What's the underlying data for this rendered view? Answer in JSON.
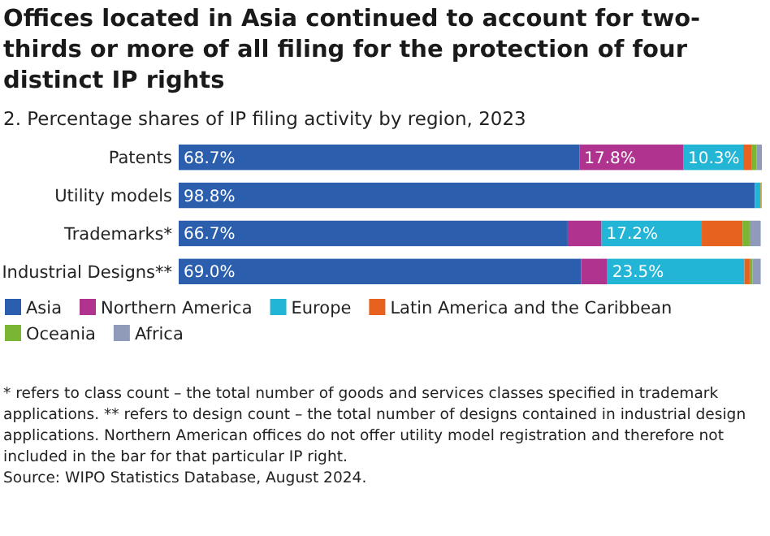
{
  "chart_data": {
    "type": "bar",
    "orientation": "horizontal",
    "stacked": true,
    "title": "Offices located in Asia continued to account for two-thirds or more of all filing for the protection of four distinct IP rights",
    "subtitle": "2. Percentage shares of IP filing activity by region, 2023",
    "categories": [
      "Patents",
      "Utility models",
      "Trademarks*",
      "Industrial Designs**"
    ],
    "series": [
      {
        "name": "Asia",
        "color": "#2b5fad",
        "values": [
          68.7,
          98.8,
          66.7,
          69.0
        ],
        "value_labels": [
          "68.7%",
          "98.8%",
          "66.7%",
          "69.0%"
        ]
      },
      {
        "name": "Northern America",
        "color": "#b0348f",
        "values": [
          17.8,
          null,
          5.8,
          4.5
        ],
        "value_labels": [
          "17.8%",
          null,
          null,
          null
        ]
      },
      {
        "name": "Europe",
        "color": "#22b5d6",
        "values": [
          10.3,
          0.8,
          17.2,
          23.5
        ],
        "value_labels": [
          "10.3%",
          null,
          "17.2%",
          "23.5%"
        ]
      },
      {
        "name": "Latin America and the Caribbean",
        "color": "#e8621f",
        "values": [
          1.5,
          0.2,
          7.0,
          0.9
        ]
      },
      {
        "name": "Oceania",
        "color": "#7ab534",
        "values": [
          0.8,
          0.1,
          1.2,
          0.5
        ]
      },
      {
        "name": "Africa",
        "color": "#8f9bb8",
        "values": [
          0.9,
          0.1,
          1.9,
          1.4
        ]
      }
    ],
    "legend": "bottom",
    "annotations": [
      "* refers to class count – the total number of goods and services classes specified in trademark applications. ** refers to design count – the total number of designs contained in industrial design applications. Northern American offices do not offer utility model registration and therefore not included in the bar for that particular IP right.",
      "Source: WIPO Statistics Database, August 2024."
    ]
  }
}
